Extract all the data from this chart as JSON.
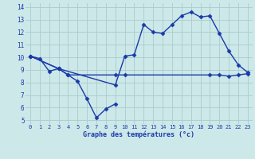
{
  "title": "Graphe des températures (°c)",
  "bg_color": "#cce8e8",
  "grid_color": "#aacccc",
  "line_color": "#1a3aaa",
  "xlim": [
    -0.5,
    23.5
  ],
  "ylim": [
    4.7,
    14.3
  ],
  "xticks": [
    0,
    1,
    2,
    3,
    4,
    5,
    6,
    7,
    8,
    9,
    10,
    11,
    12,
    13,
    14,
    15,
    16,
    17,
    18,
    19,
    20,
    21,
    22,
    23
  ],
  "yticks": [
    5,
    6,
    7,
    8,
    9,
    10,
    11,
    12,
    13,
    14
  ],
  "series": [
    {
      "x": [
        0,
        1,
        2,
        3,
        4,
        5,
        6,
        7,
        8,
        9
      ],
      "y": [
        10.1,
        9.9,
        8.9,
        9.1,
        8.6,
        8.1,
        6.7,
        5.2,
        5.9,
        6.3
      ],
      "marker": "D",
      "markersize": 2.5,
      "linewidth": 1.0
    },
    {
      "x": [
        0,
        3,
        9,
        10,
        11,
        12,
        13,
        14,
        15,
        16,
        17,
        18,
        19,
        20,
        21,
        22,
        23
      ],
      "y": [
        10.1,
        9.1,
        7.8,
        10.1,
        10.2,
        12.6,
        12.0,
        11.9,
        12.6,
        13.3,
        13.6,
        13.2,
        13.3,
        11.9,
        10.5,
        9.4,
        8.8
      ],
      "marker": "D",
      "markersize": 2.5,
      "linewidth": 1.0
    },
    {
      "x": [
        0,
        3,
        4,
        9,
        10,
        19,
        20,
        21,
        22,
        23
      ],
      "y": [
        10.1,
        9.1,
        8.6,
        8.6,
        8.6,
        8.6,
        8.6,
        8.5,
        8.6,
        8.7
      ],
      "marker": "D",
      "markersize": 2.5,
      "linewidth": 1.0
    }
  ]
}
